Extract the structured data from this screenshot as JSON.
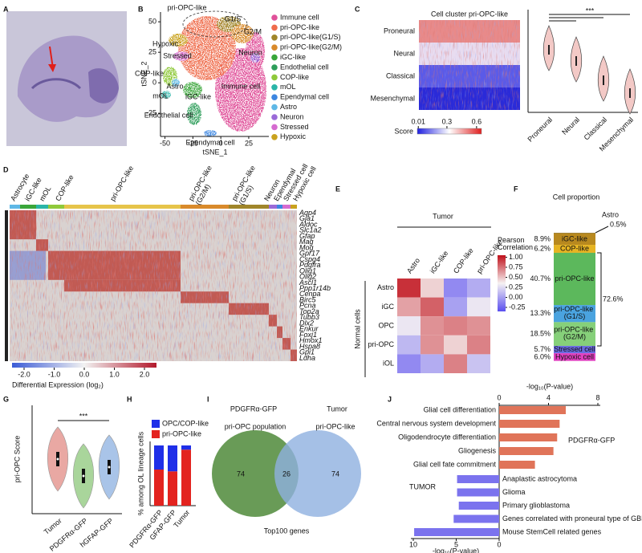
{
  "panel_labels": [
    "A",
    "B",
    "C",
    "D",
    "E",
    "F",
    "G",
    "H",
    "I",
    "J"
  ],
  "b": {
    "xlabel": "tSNE_1",
    "ylabel": "tSNE_2",
    "xlim": [
      -54,
      43
    ],
    "ylim": [
      -44,
      58
    ],
    "xticks": [
      -50,
      -25,
      0,
      25
    ],
    "yticks": [
      -25,
      0,
      25,
      50
    ],
    "legend": [
      {
        "name": "Immune cell",
        "color": "#e0519a"
      },
      {
        "name": "pri-OPC-like",
        "color": "#ef6c4c"
      },
      {
        "name": "pri-OPC-like(G1/S)",
        "color": "#a0862a"
      },
      {
        "name": "pri-OPC-like(G2/M)",
        "color": "#d98a2b"
      },
      {
        "name": "iGC-like",
        "color": "#3aa63a"
      },
      {
        "name": "Endothelial cell",
        "color": "#2e9e5a"
      },
      {
        "name": "COP-like",
        "color": "#8fc93a"
      },
      {
        "name": "mOL",
        "color": "#2bb5a8"
      },
      {
        "name": "Ependymal cell",
        "color": "#3c86e0"
      },
      {
        "name": "Astro",
        "color": "#5fb8e6"
      },
      {
        "name": "Neuron",
        "color": "#9a6ad8"
      },
      {
        "name": "Stressed",
        "color": "#d56bd0"
      },
      {
        "name": "Hypoxic",
        "color": "#c9a21e"
      }
    ],
    "cluster_labels": [
      "pri-OPC-like",
      "G1/S",
      "G2/M",
      "Hypoxic",
      "Neuron",
      "Stressed",
      "COP-like",
      "Astro",
      "mOL",
      "iGC-like",
      "Immune cell",
      "Endothelial cell",
      "Ependymal cell"
    ]
  },
  "c": {
    "title": "Cell cluster pri-OPC-like",
    "rows": [
      "Proneural",
      "Neural",
      "Classical",
      "Mesenchymal"
    ],
    "colorbar_label": "Score",
    "colorbar_lim": [
      0,
      0.65
    ],
    "colorbar_ticks": [
      0.01,
      0.3,
      0.6
    ],
    "significance": "***",
    "violin_categories": [
      "Proneural",
      "Neural",
      "Classical",
      "Mesenchymal"
    ]
  },
  "d": {
    "columns": [
      "Astrocyte",
      "iGC-like",
      "mOL",
      "COP-like",
      "pri-OPC-like",
      "pri-OPC-like (G2/M)",
      "pri-OPC-like (G1/S)",
      "Neuron",
      "Ependymal",
      "Stressed cell",
      "Hypoxic cell"
    ],
    "genes": [
      "Aqp4",
      "Gja1",
      "Aldoc",
      "Slc1a2",
      "Gfap",
      "Mag",
      "Mog",
      "Gpr17",
      "Cspg4",
      "Pdgfra",
      "Olig1",
      "Olig2",
      "Ascl1",
      "Ppp1r14b",
      "Cenpa",
      "Birc5",
      "Pcna",
      "Top2a",
      "Tubb3",
      "Dlx2",
      "Enkur",
      "Foxj1",
      "Hmox1",
      "Hspa8",
      "Gpi1",
      "Ldha"
    ],
    "colorbar_lim": [
      -2.4,
      2.4
    ],
    "colorbar_ticks": [
      {
        "value": -2,
        "label": "-2.0"
      },
      {
        "value": -1,
        "label": "-1.0"
      },
      {
        "value": 0,
        "label": "0.0"
      },
      {
        "value": 1,
        "label": "1.0"
      },
      {
        "value": 2,
        "label": "2.0"
      }
    ],
    "colorbar_label": "Differential Expression (log₂)"
  },
  "e": {
    "title": "Tumor",
    "columns": [
      "Astro",
      "iGC-like",
      "COP-like",
      "pri-OPC-like"
    ],
    "rows": [
      "Astro",
      "iGC",
      "OPC",
      "pri-OPC",
      "iOL"
    ],
    "row_group": "Normal cells",
    "matrix": [
      [
        0.95,
        0.45,
        -0.1,
        0.05
      ],
      [
        0.6,
        0.8,
        0.0,
        0.3
      ],
      [
        0.3,
        0.65,
        0.7,
        0.65
      ],
      [
        0.1,
        0.65,
        0.45,
        0.7
      ],
      [
        -0.1,
        0.05,
        0.7,
        0.15
      ]
    ],
    "colorbar_label": "Pearson Correlation",
    "colorbar_lim": [
      -0.35,
      1.05
    ],
    "colorbar_ticks": [
      {
        "value": 1,
        "label": "1.00"
      },
      0.75,
      {
        "value": 0.5,
        "label": "0.50"
      },
      0.25,
      {
        "value": 0,
        "label": "0.00"
      },
      -0.25
    ]
  },
  "f": {
    "title": "Cell proportion",
    "categories": [
      "Astro",
      "iGC-like",
      "COP-like",
      "pri-OPC-like",
      "pri-OPC-like (G1/S)",
      "pri-OPC-like (G2/M)",
      "Stressed cell",
      "Hypoxic cell"
    ],
    "values": [
      0.5,
      8.9,
      6.2,
      40.7,
      13.3,
      18.5,
      5.7,
      6.0
    ],
    "value_labels": [
      "0.5%",
      "8.9%",
      "6.2%",
      "40.7%",
      "13.3%",
      "18.5%",
      "5.7%",
      "6.0%"
    ],
    "colors": [
      "#8a6d1e",
      "#b8891f",
      "#e6b422",
      "#5cb85c",
      "#4aa3df",
      "#86d07a",
      "#6b6be0",
      "#e040c0"
    ],
    "ylim": [
      0,
      100
    ],
    "bracket": {
      "value": 72.6,
      "label": "72.6%"
    }
  },
  "g": {
    "ylabel": "pri-OPC Score",
    "categories": [
      "Tumor",
      "PDGFRα-GFP",
      "hGFAP-GFP"
    ],
    "colors": [
      "#e9a8a3",
      "#a9d59b",
      "#a9c4e8"
    ],
    "significance": "***"
  },
  "h": {
    "ylabel": "% among OL lineage cells",
    "categories": [
      "PDGFRα-GFP",
      "GFAP-GFP",
      "Tumor"
    ],
    "ylim": [
      0,
      100
    ],
    "series": [
      {
        "name": "pri-OPC-like",
        "color": "#e3231f",
        "values": [
          60,
          57,
          93
        ]
      },
      {
        "name": "OPC/COP-like",
        "color": "#1f2fe8",
        "values": [
          40,
          43,
          7
        ]
      }
    ]
  },
  "i": {
    "left_title": "PDGFRα-GFP",
    "right_title": "Tumor",
    "left_subtitle": "pri-OPC population",
    "right_subtitle": "pri-OPC-like",
    "left_only": 74,
    "overlap": 26,
    "right_only": 74,
    "caption": "Top100 genes"
  },
  "j": {
    "top_axis": {
      "label": "-log₁₀(P-value)",
      "xlim": [
        0,
        8
      ],
      "xticks": [
        0,
        4,
        8
      ]
    },
    "bottom_axis": {
      "label": "-log₁₀(P-value)",
      "xlim": [
        0,
        10
      ],
      "xticks": [
        10,
        5,
        0
      ]
    },
    "series": [
      {
        "name": "PDGFRα-GFP",
        "color": "#e07459",
        "categories": [
          "Glial cell differentiation",
          "Central nervous system development",
          "Oligodendrocyte differentiation",
          "Gliogenesis",
          "Glial cell fate commitment"
        ],
        "values": [
          5.4,
          4.9,
          4.7,
          4.4,
          2.9
        ]
      },
      {
        "name": "TUMOR",
        "color": "#7b73ee",
        "categories": [
          "Anaplastic astrocytoma",
          "Glioma",
          "Primary glioblastoma",
          "Genes correlated with proneural type of GBM",
          "Mouse StemCell related genes"
        ],
        "values": [
          4.9,
          4.9,
          4.7,
          5.3,
          9.9
        ]
      }
    ]
  }
}
